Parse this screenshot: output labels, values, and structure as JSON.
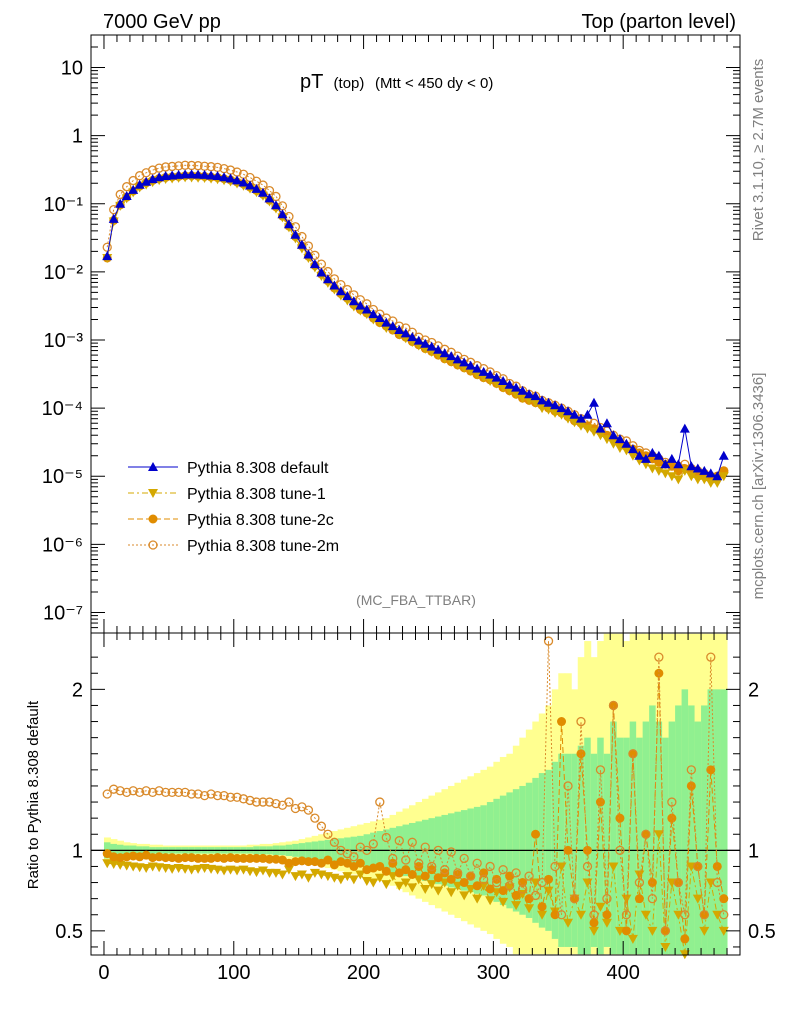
{
  "header": {
    "left": "7000 GeV pp",
    "right": "Top (parton level)"
  },
  "side": {
    "rivet": "Rivet 3.1.10, ≥ 2.7M events",
    "mcplots": "mcplots.cern.ch [arXiv:1306.3436]"
  },
  "plot_title": {
    "main": "pT",
    "sub1": "(top)",
    "sub2": "(Mtt < 450 dy < 0)"
  },
  "analysis_tag": "(MC_FBA_TTBAR)",
  "ratio_ylabel": "Ratio to Pythia 8.308 default",
  "colors": {
    "default": "#0000cc",
    "tune1": "#d4a800",
    "tune2c": "#e08c00",
    "tune2m": "#d98a2b",
    "band_green": "#90f090",
    "band_yellow": "#ffff90"
  },
  "chart_data": [
    {
      "type": "line",
      "panel": "main",
      "yscale": "log",
      "xlim": [
        -10,
        490
      ],
      "ylim": [
        5e-08,
        30
      ],
      "x_ticks": [
        0,
        100,
        200,
        300,
        400
      ],
      "y_tick_labels": [
        "10",
        "1",
        "10⁻¹",
        "10⁻²",
        "10⁻³",
        "10⁻⁴",
        "10⁻⁵",
        "10⁻⁶",
        "10⁻⁷"
      ],
      "legend_position": "lower-left",
      "x": [
        2.5,
        7.5,
        12.5,
        17.5,
        22.5,
        27.5,
        32.5,
        37.5,
        42.5,
        47.5,
        52.5,
        57.5,
        62.5,
        67.5,
        72.5,
        77.5,
        82.5,
        87.5,
        92.5,
        97.5,
        102.5,
        107.5,
        112.5,
        117.5,
        122.5,
        127.5,
        132.5,
        137.5,
        142.5,
        147.5,
        152.5,
        157.5,
        162.5,
        167.5,
        172.5,
        177.5,
        182.5,
        187.5,
        192.5,
        197.5,
        202.5,
        207.5,
        212.5,
        217.5,
        222.5,
        227.5,
        232.5,
        237.5,
        242.5,
        247.5,
        252.5,
        257.5,
        262.5,
        267.5,
        272.5,
        277.5,
        282.5,
        287.5,
        292.5,
        297.5,
        302.5,
        307.5,
        312.5,
        317.5,
        322.5,
        327.5,
        332.5,
        337.5,
        342.5,
        347.5,
        352.5,
        357.5,
        362.5,
        367.5,
        372.5,
        377.5,
        382.5,
        387.5,
        392.5,
        397.5,
        402.5,
        407.5,
        412.5,
        417.5,
        422.5,
        427.5,
        432.5,
        437.5,
        442.5,
        447.5,
        452.5,
        457.5,
        462.5,
        467.5,
        472.5,
        477.5
      ],
      "series": [
        {
          "name": "Pythia 8.308 default",
          "marker": "triangle-up",
          "values": [
            0.017,
            0.06,
            0.1,
            0.13,
            0.16,
            0.19,
            0.21,
            0.23,
            0.245,
            0.255,
            0.26,
            0.265,
            0.27,
            0.27,
            0.268,
            0.265,
            0.26,
            0.255,
            0.245,
            0.235,
            0.22,
            0.205,
            0.185,
            0.165,
            0.145,
            0.12,
            0.095,
            0.07,
            0.05,
            0.035,
            0.025,
            0.018,
            0.013,
            0.0098,
            0.0078,
            0.0063,
            0.0052,
            0.0044,
            0.0037,
            0.0032,
            0.0028,
            0.0024,
            0.0021,
            0.0018,
            0.0016,
            0.0014,
            0.00125,
            0.0011,
            0.00098,
            0.00088,
            0.0008,
            0.00072,
            0.00064,
            0.00058,
            0.00052,
            0.00047,
            0.00042,
            0.00038,
            0.00034,
            0.00031,
            0.00028,
            0.00025,
            0.00022,
            0.0002,
            0.00018,
            0.00016,
            0.00015,
            0.00013,
            0.00012,
            0.00011,
            0.0001,
            9e-05,
            8e-05,
            7e-05,
            8e-05,
            0.00012,
            5e-05,
            6e-05,
            4e-05,
            3.5e-05,
            3e-05,
            2.5e-05,
            2e-05,
            1.8e-05,
            2.2e-05,
            2e-05,
            1.5e-05,
            1.8e-05,
            1.5e-05,
            5e-05,
            1.4e-05,
            1.3e-05,
            1.2e-05,
            1.1e-05,
            1e-05,
            2e-05
          ]
        },
        {
          "name": "Pythia 8.308 tune-1",
          "marker": "triangle-down",
          "values": [
            0.016,
            0.055,
            0.093,
            0.12,
            0.147,
            0.173,
            0.191,
            0.208,
            0.222,
            0.231,
            0.235,
            0.24,
            0.244,
            0.243,
            0.241,
            0.239,
            0.234,
            0.229,
            0.221,
            0.212,
            0.198,
            0.184,
            0.167,
            0.148,
            0.131,
            0.108,
            0.085,
            0.063,
            0.045,
            0.031,
            0.022,
            0.016,
            0.0116,
            0.0087,
            0.0069,
            0.0055,
            0.0045,
            0.0038,
            0.0031,
            0.0027,
            0.0024,
            0.002,
            0.0018,
            0.0015,
            0.0014,
            0.0012,
            0.00106,
            0.00093,
            0.00083,
            0.00074,
            0.00067,
            0.0006,
            0.00053,
            0.00048,
            0.00043,
            0.00039,
            0.00035,
            0.00031,
            0.00028,
            0.00025,
            0.00023,
            0.0002,
            0.00018,
            0.00016,
            0.00014,
            0.00013,
            0.00012,
            0.0001,
            9.5e-05,
            8.5e-05,
            8e-05,
            7e-05,
            6.2e-05,
            5.5e-05,
            5e-05,
            4.5e-05,
            4e-05,
            3.5e-05,
            3e-05,
            2.6e-05,
            2.4e-05,
            2e-05,
            1.7e-05,
            1.5e-05,
            1.3e-05,
            1.2e-05,
            1.1e-05,
            1e-05,
            9e-06,
            1.2e-05,
            1e-05,
            9e-06,
            9e-06,
            8e-06,
            8e-06,
            1e-05
          ]
        },
        {
          "name": "Pythia 8.308 tune-2c",
          "marker": "circle",
          "values": [
            0.016,
            0.057,
            0.096,
            0.125,
            0.154,
            0.182,
            0.203,
            0.22,
            0.235,
            0.243,
            0.248,
            0.252,
            0.257,
            0.258,
            0.255,
            0.252,
            0.247,
            0.242,
            0.233,
            0.224,
            0.209,
            0.195,
            0.176,
            0.157,
            0.138,
            0.113,
            0.09,
            0.066,
            0.047,
            0.033,
            0.024,
            0.017,
            0.0124,
            0.0093,
            0.0074,
            0.0058,
            0.0048,
            0.0041,
            0.0033,
            0.0028,
            0.0025,
            0.0021,
            0.0018,
            0.0016,
            0.0014,
            0.0012,
            0.0011,
            0.00095,
            0.00085,
            0.00075,
            0.00068,
            0.0006,
            0.00053,
            0.00048,
            0.00043,
            0.00039,
            0.00035,
            0.00031,
            0.00028,
            0.00026,
            0.00023,
            0.0002,
            0.00018,
            0.00016,
            0.00014,
            0.00013,
            0.00012,
            0.00011,
            0.0001,
            9e-05,
            8.5e-05,
            7.5e-05,
            6.5e-05,
            6e-05,
            5.5e-05,
            5e-05,
            4.5e-05,
            4e-05,
            3.5e-05,
            3e-05,
            2.8e-05,
            2.5e-05,
            2.2e-05,
            2e-05,
            1.8e-05,
            1.6e-05,
            1.5e-05,
            1.4e-05,
            1.2e-05,
            1.3e-05,
            1.2e-05,
            1.1e-05,
            1e-05,
            1e-05,
            1e-05,
            1.2e-05
          ]
        },
        {
          "name": "Pythia 8.308 tune-2m",
          "marker": "open-circle",
          "values": [
            0.023,
            0.082,
            0.137,
            0.178,
            0.219,
            0.258,
            0.285,
            0.312,
            0.333,
            0.347,
            0.353,
            0.36,
            0.367,
            0.365,
            0.362,
            0.355,
            0.35,
            0.342,
            0.328,
            0.312,
            0.292,
            0.271,
            0.243,
            0.214,
            0.188,
            0.156,
            0.128,
            0.093,
            0.065,
            0.046,
            0.033,
            0.024,
            0.0175,
            0.013,
            0.0101,
            0.0079,
            0.0065,
            0.0055,
            0.0046,
            0.0039,
            0.0034,
            0.0028,
            0.0024,
            0.0021,
            0.0019,
            0.0016,
            0.0015,
            0.0013,
            0.0011,
            0.001,
            0.00092,
            0.00082,
            0.00073,
            0.00066,
            0.00058,
            0.00052,
            0.00047,
            0.00042,
            0.00038,
            0.00034,
            0.0003,
            0.00027,
            0.00023,
            0.00021,
            0.00018,
            0.00016,
            0.00015,
            0.00013,
            0.00012,
            0.00011,
            0.0001,
            9e-05,
            8e-05,
            7e-05,
            6.5e-05,
            6e-05,
            5.2e-05,
            4.6e-05,
            4e-05,
            3.5e-05,
            3.3e-05,
            2.8e-05,
            2.4e-05,
            2.2e-05,
            2e-05,
            1.8e-05,
            1.6e-05,
            1.5e-05,
            1.4e-05,
            1.5e-05,
            1.3e-05,
            1.2e-05,
            1.1e-05,
            1e-05,
            1e-05,
            1.2e-05
          ]
        }
      ]
    },
    {
      "type": "line",
      "panel": "ratio",
      "xlim": [
        -10,
        490
      ],
      "ylim": [
        0.35,
        2.35
      ],
      "y_tick_labels": [
        "0.5",
        "1",
        "2"
      ],
      "reference_line": 1,
      "series": [
        {
          "name": "Pythia 8.308 tune-1",
          "marker": "triangle-down",
          "values": [
            0.92,
            0.915,
            0.91,
            0.905,
            0.9,
            0.895,
            0.89,
            0.9,
            0.895,
            0.89,
            0.885,
            0.89,
            0.885,
            0.88,
            0.885,
            0.89,
            0.885,
            0.88,
            0.875,
            0.88,
            0.875,
            0.88,
            0.87,
            0.865,
            0.875,
            0.86,
            0.86,
            0.85,
            0.88,
            0.84,
            0.85,
            0.83,
            0.86,
            0.85,
            0.84,
            0.83,
            0.82,
            0.84,
            0.82,
            0.85,
            0.81,
            0.8,
            0.83,
            0.79,
            0.84,
            0.78,
            0.8,
            0.77,
            0.82,
            0.76,
            0.79,
            0.75,
            0.8,
            0.74,
            0.78,
            0.72,
            0.76,
            0.7,
            0.78,
            0.69,
            0.74,
            0.68,
            0.77,
            0.66,
            0.73,
            0.64,
            0.8,
            0.6,
            0.75,
            0.62,
            0.9,
            0.55,
            0.7,
            0.6,
            0.8,
            0.5,
            0.65,
            0.55,
            0.9,
            0.5,
            0.7,
            0.45,
            0.85,
            0.6,
            0.5,
            1.1,
            0.4,
            0.8,
            0.6,
            0.3,
            0.9,
            0.7,
            0.5,
            0.8,
            0.6,
            0.5
          ]
        },
        {
          "name": "Pythia 8.308 tune-2c",
          "marker": "circle",
          "values": [
            0.98,
            0.96,
            0.955,
            0.96,
            0.965,
            0.96,
            0.97,
            0.955,
            0.96,
            0.955,
            0.955,
            0.95,
            0.955,
            0.955,
            0.95,
            0.95,
            0.95,
            0.955,
            0.95,
            0.955,
            0.95,
            0.95,
            0.95,
            0.95,
            0.95,
            0.945,
            0.945,
            0.94,
            0.92,
            0.93,
            0.935,
            0.93,
            0.93,
            0.92,
            0.94,
            0.91,
            0.93,
            0.92,
            0.9,
            0.92,
            0.88,
            0.89,
            0.9,
            0.87,
            0.92,
            0.86,
            0.88,
            0.85,
            0.9,
            0.84,
            0.88,
            0.83,
            0.86,
            0.82,
            0.85,
            0.8,
            0.84,
            0.78,
            0.86,
            0.76,
            0.82,
            0.75,
            0.84,
            0.72,
            0.8,
            0.7,
            1.1,
            0.65,
            0.82,
            0.6,
            1.8,
            1.0,
            0.7,
            1.6,
            1.0,
            0.55,
            1.3,
            0.6,
            1.9,
            1.2,
            0.5,
            1.6,
            0.7,
            1.1,
            0.8,
            2.1,
            0.5,
            1.2,
            0.8,
            0.45,
            1.4,
            0.9,
            0.6,
            1.5,
            0.9,
            0.7
          ]
        },
        {
          "name": "Pythia 8.308 tune-2m",
          "marker": "open-circle",
          "values": [
            1.35,
            1.38,
            1.37,
            1.36,
            1.37,
            1.36,
            1.37,
            1.36,
            1.37,
            1.36,
            1.36,
            1.36,
            1.36,
            1.35,
            1.35,
            1.34,
            1.35,
            1.34,
            1.34,
            1.33,
            1.33,
            1.32,
            1.31,
            1.3,
            1.3,
            1.3,
            1.29,
            1.28,
            1.3,
            1.26,
            1.27,
            1.25,
            1.2,
            1.15,
            1.1,
            1.05,
            1.0,
            0.98,
            0.96,
            1.02,
            1.0,
            1.04,
            1.3,
            1.08,
            0.95,
            1.06,
            0.94,
            1.05,
            0.92,
            1.02,
            0.9,
            1.0,
            0.88,
            0.99,
            0.86,
            0.95,
            0.84,
            0.92,
            0.82,
            0.9,
            0.8,
            0.88,
            0.78,
            0.86,
            0.76,
            0.84,
            0.72,
            0.8,
            2.3,
            0.9,
            0.6,
            1.4,
            0.7,
            1.8,
            0.9,
            0.6,
            1.5,
            0.7,
            1.9,
            1.0,
            0.6,
            1.6,
            0.8,
            1.1,
            0.7,
            2.2,
            0.5,
            1.3,
            0.8,
            0.6,
            1.5,
            0.9,
            0.6,
            2.2,
            0.8,
            0.6
          ]
        }
      ],
      "bands": {
        "green_halfwidth": [
          0.05,
          0.04,
          0.035,
          0.03,
          0.03,
          0.025,
          0.025,
          0.02,
          0.02,
          0.02,
          0.02,
          0.02,
          0.02,
          0.02,
          0.02,
          0.02,
          0.02,
          0.02,
          0.02,
          0.02,
          0.02,
          0.02,
          0.02,
          0.025,
          0.025,
          0.025,
          0.03,
          0.03,
          0.035,
          0.04,
          0.045,
          0.05,
          0.055,
          0.06,
          0.065,
          0.07,
          0.075,
          0.08,
          0.085,
          0.09,
          0.1,
          0.11,
          0.12,
          0.13,
          0.14,
          0.15,
          0.16,
          0.17,
          0.18,
          0.19,
          0.2,
          0.21,
          0.22,
          0.23,
          0.24,
          0.25,
          0.26,
          0.27,
          0.28,
          0.3,
          0.32,
          0.34,
          0.36,
          0.38,
          0.4,
          0.42,
          0.45,
          0.48,
          0.5,
          0.55,
          0.6,
          0.6,
          0.6,
          0.65,
          0.7,
          0.6,
          0.7,
          0.6,
          0.8,
          0.7,
          0.7,
          0.8,
          0.7,
          0.8,
          0.9,
          0.8,
          0.7,
          0.8,
          0.9,
          1.0,
          0.9,
          0.8,
          0.9,
          1.0,
          1.0,
          1.0
        ],
        "yellow_halfwidth": [
          0.08,
          0.07,
          0.06,
          0.05,
          0.045,
          0.04,
          0.04,
          0.035,
          0.035,
          0.03,
          0.03,
          0.03,
          0.03,
          0.03,
          0.03,
          0.03,
          0.03,
          0.03,
          0.03,
          0.03,
          0.03,
          0.03,
          0.035,
          0.035,
          0.04,
          0.04,
          0.045,
          0.05,
          0.055,
          0.06,
          0.07,
          0.08,
          0.09,
          0.1,
          0.11,
          0.12,
          0.13,
          0.14,
          0.15,
          0.16,
          0.17,
          0.18,
          0.19,
          0.2,
          0.22,
          0.24,
          0.26,
          0.28,
          0.3,
          0.32,
          0.34,
          0.36,
          0.38,
          0.4,
          0.42,
          0.44,
          0.46,
          0.48,
          0.5,
          0.52,
          0.55,
          0.58,
          0.6,
          0.65,
          0.7,
          0.75,
          0.8,
          0.85,
          0.9,
          1.0,
          1.1,
          1.1,
          1.0,
          1.2,
          1.3,
          1.2,
          1.3,
          1.4,
          1.5,
          1.4,
          1.3,
          1.5,
          1.6,
          1.5,
          1.4,
          1.6,
          1.5,
          1.6,
          1.7,
          1.6,
          1.5,
          1.6,
          1.7,
          1.6,
          1.7,
          1.6
        ]
      }
    }
  ]
}
